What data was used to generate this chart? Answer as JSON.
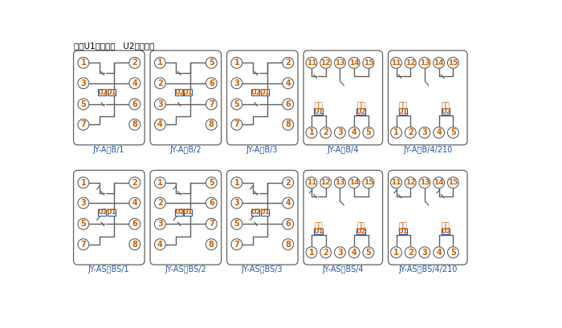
{
  "title_note": "注：U1辅助电源   U2整定电压",
  "bg_color": "#ffffff",
  "line_color": "#606060",
  "orange_text": "#d06000",
  "blue_text": "#2255aa",
  "diagrams_row1": [
    {
      "label": "JY-A、B/1"
    },
    {
      "label": "JY-A、B/2"
    },
    {
      "label": "JY-A、B/3"
    },
    {
      "label": "JY-A、B/4"
    },
    {
      "label": "JY-A、B/4/210"
    }
  ],
  "diagrams_row2": [
    {
      "label": "JY-AS、BS/1"
    },
    {
      "label": "JY-AS、BS/2"
    },
    {
      "label": "JY-AS、BS/3"
    },
    {
      "label": "JY-AS、BS/4"
    },
    {
      "label": "JY-AS、BS/4/210"
    }
  ]
}
